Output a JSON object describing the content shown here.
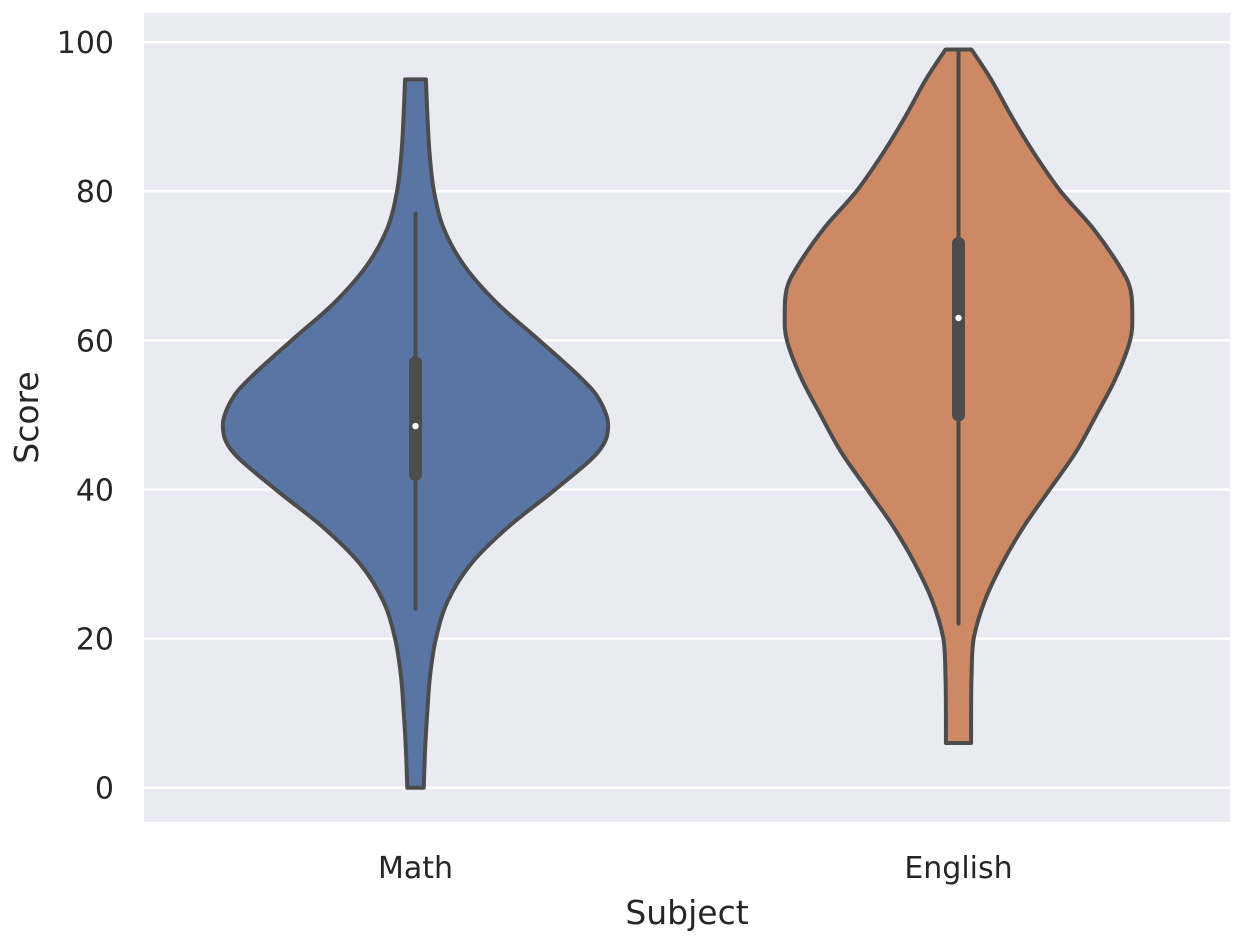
{
  "chart_data": {
    "type": "violin",
    "xlabel": "Subject",
    "ylabel": "Score",
    "categories": [
      "Math",
      "English"
    ],
    "ylim": [
      -4.6,
      103.9
    ],
    "yticks": [
      0,
      20,
      40,
      60,
      80,
      100
    ],
    "grid": true,
    "colors": {
      "background": "#eaeaf2",
      "grid": "#ffffff",
      "outline": "#4c4c4c",
      "Math": "#5875a4",
      "English": "#cc8963"
    },
    "violins": [
      {
        "category": "Math",
        "range": [
          0,
          95
        ],
        "min": 24,
        "q1": 42,
        "median": 48.5,
        "q3": 57,
        "max": 77,
        "half_width_profile": [
          [
            0,
            0.038
          ],
          [
            5,
            0.044
          ],
          [
            10,
            0.054
          ],
          [
            15,
            0.067
          ],
          [
            20,
            0.094
          ],
          [
            25,
            0.148
          ],
          [
            30,
            0.255
          ],
          [
            35,
            0.428
          ],
          [
            40,
            0.644
          ],
          [
            45,
            0.84
          ],
          [
            48.5,
            0.887
          ],
          [
            52,
            0.847
          ],
          [
            55,
            0.76
          ],
          [
            60,
            0.57
          ],
          [
            65,
            0.375
          ],
          [
            70,
            0.225
          ],
          [
            75,
            0.13
          ],
          [
            80,
            0.085
          ],
          [
            85,
            0.065
          ],
          [
            90,
            0.055
          ],
          [
            95,
            0.048
          ]
        ]
      },
      {
        "category": "English",
        "range": [
          6,
          99
        ],
        "min": 22,
        "q1": 50,
        "median": 63,
        "q3": 73,
        "max": 99,
        "half_width_profile": [
          [
            6,
            0.058
          ],
          [
            10,
            0.058
          ],
          [
            15,
            0.06
          ],
          [
            20,
            0.07
          ],
          [
            25,
            0.12
          ],
          [
            30,
            0.2
          ],
          [
            35,
            0.3
          ],
          [
            40,
            0.42
          ],
          [
            45,
            0.54
          ],
          [
            50,
            0.635
          ],
          [
            55,
            0.725
          ],
          [
            60,
            0.79
          ],
          [
            63.5,
            0.8
          ],
          [
            67,
            0.79
          ],
          [
            70,
            0.74
          ],
          [
            75,
            0.62
          ],
          [
            80,
            0.47
          ],
          [
            85,
            0.35
          ],
          [
            90,
            0.245
          ],
          [
            95,
            0.15
          ],
          [
            99,
            0.06
          ]
        ]
      }
    ]
  }
}
